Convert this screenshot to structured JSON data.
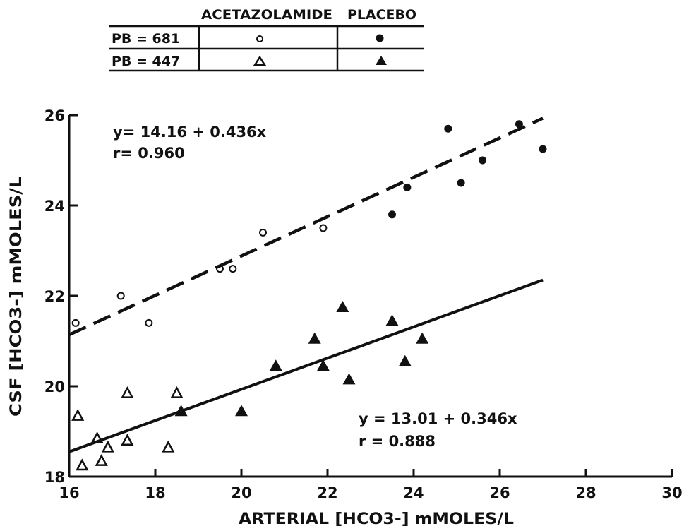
{
  "legend_table": {
    "col_headers": [
      "ACETAZOLAMIDE",
      "PLACEBO"
    ],
    "rows": [
      {
        "label": "PB = 681",
        "acetazolamide_marker": "open-circle",
        "placebo_marker": "filled-circle"
      },
      {
        "label": "PB = 447",
        "acetazolamide_marker": "open-triangle",
        "placebo_marker": "filled-triangle"
      }
    ]
  },
  "chart_data": {
    "type": "scatter",
    "xlabel": "ARTERIAL [HCO3-] mMOLES/L",
    "ylabel": "CSF [HCO3-] mMOLES/L",
    "xlim": [
      16,
      30
    ],
    "ylim": [
      18,
      26
    ],
    "x_ticks": [
      16,
      18,
      20,
      22,
      24,
      26,
      28,
      30
    ],
    "y_ticks": [
      18,
      20,
      22,
      24,
      26
    ],
    "grid": false,
    "series": [
      {
        "group": "PB = 681 / ACETAZOLAMIDE",
        "marker": "open-circle",
        "points": [
          [
            16.15,
            21.4
          ],
          [
            17.2,
            22.0
          ],
          [
            17.85,
            21.4
          ],
          [
            19.5,
            22.6
          ],
          [
            19.8,
            22.6
          ],
          [
            20.5,
            23.4
          ],
          [
            21.9,
            23.5
          ]
        ]
      },
      {
        "group": "PB = 681 / PLACEBO",
        "marker": "filled-circle",
        "points": [
          [
            23.5,
            23.8
          ],
          [
            23.85,
            24.4
          ],
          [
            24.8,
            25.7
          ],
          [
            25.1,
            24.5
          ],
          [
            25.6,
            25.0
          ],
          [
            26.45,
            25.8
          ],
          [
            27.0,
            25.25
          ]
        ]
      },
      {
        "group": "PB = 447 / ACETAZOLAMIDE",
        "marker": "open-triangle",
        "points": [
          [
            16.2,
            19.35
          ],
          [
            16.3,
            18.25
          ],
          [
            16.65,
            18.85
          ],
          [
            16.75,
            18.35
          ],
          [
            16.9,
            18.65
          ],
          [
            17.35,
            19.85
          ],
          [
            17.35,
            18.8
          ],
          [
            18.3,
            18.65
          ],
          [
            18.5,
            19.85
          ]
        ]
      },
      {
        "group": "PB = 447 / PLACEBO",
        "marker": "filled-triangle",
        "points": [
          [
            18.6,
            19.45
          ],
          [
            20.0,
            19.45
          ],
          [
            20.8,
            20.45
          ],
          [
            21.7,
            21.05
          ],
          [
            21.9,
            20.45
          ],
          [
            22.35,
            21.75
          ],
          [
            22.5,
            20.15
          ],
          [
            23.5,
            21.45
          ],
          [
            23.8,
            20.55
          ],
          [
            24.2,
            21.05
          ]
        ]
      }
    ],
    "regression_lines": [
      {
        "style": "dashed",
        "x": [
          16,
          27
        ],
        "y": [
          21.14,
          25.93
        ],
        "equation": "y= 14.16 + 0.436x",
        "r": "r= 0.960"
      },
      {
        "style": "solid",
        "x": [
          16,
          27
        ],
        "y": [
          18.55,
          22.35
        ],
        "equation": "y = 13.01 + 0.346x",
        "r": "r = 0.888"
      }
    ]
  }
}
